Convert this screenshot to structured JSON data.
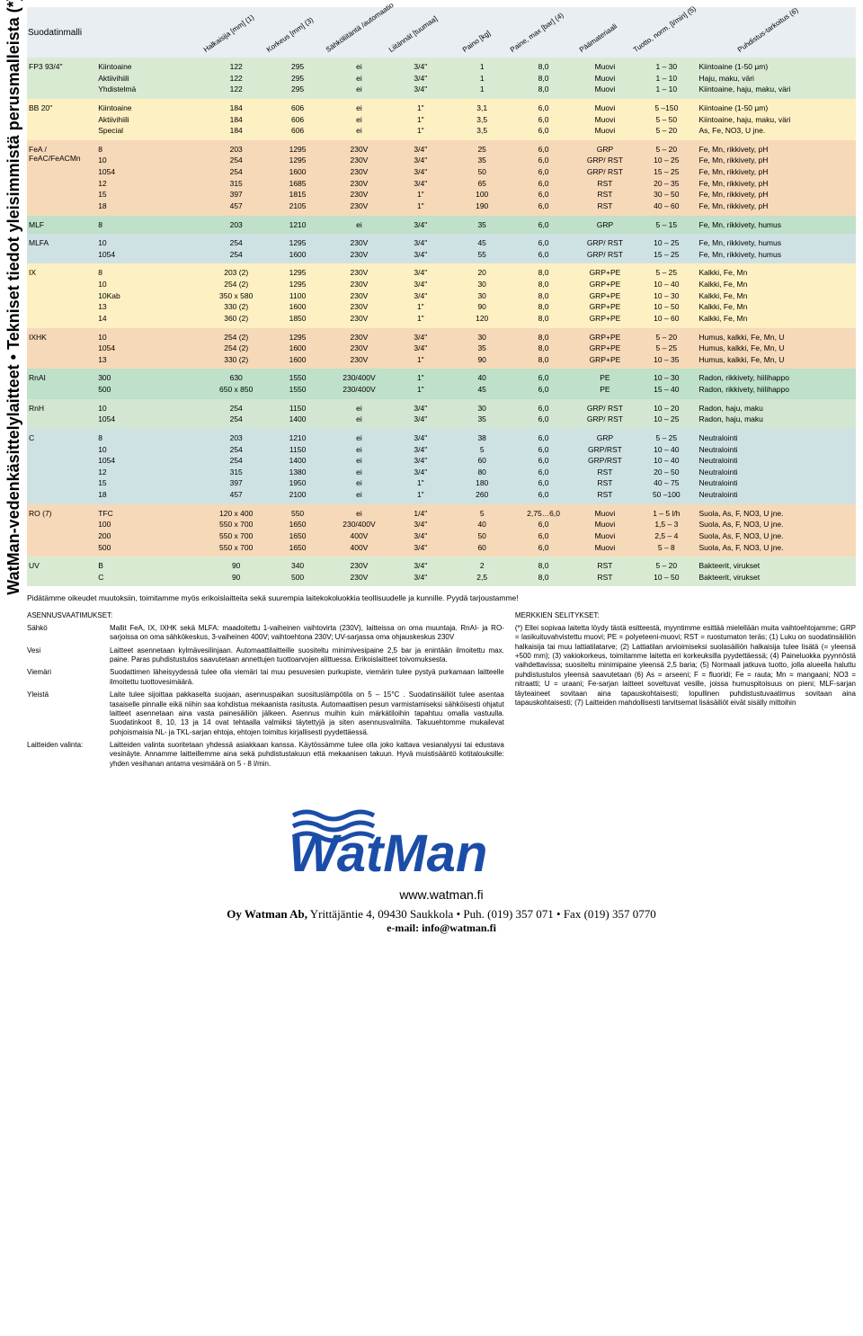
{
  "vertical_title": "WatMan-vedenkäsittelylaitteet • Tekniset tiedot yleisimmistä perusmalleista (*)",
  "headers": [
    "Suodatinmalli",
    "Halkaisija [mm] (1)",
    "Korkeus [mm] (3)",
    "Sähköliitäntä /automaatio",
    "Liitännät [tuumaa]",
    "Paino [kg]",
    "Paine, max [bar] (4)",
    "Päämateriaali",
    "Tuotto, norm. [l/min] (5)",
    "Puhdistus-tarkoitus (6)"
  ],
  "colors": {
    "green_light": "#d9ead3",
    "yellow": "#fdf0c2",
    "orange": "#f6d9b8",
    "green_row": "#bfe0c9",
    "blue_row": "#cfe2e3",
    "green_mid": "#d2e6d2",
    "header_bg": "#e9eef2"
  },
  "sections": [
    {
      "bg": "green_light",
      "model": "FP3 93/4\"",
      "subs": [
        "Kiintoaine",
        "Aktiivihiili",
        "Yhdistelmä"
      ],
      "cols": [
        [
          "122",
          "122",
          "122"
        ],
        [
          "295",
          "295",
          "295"
        ],
        [
          "ei",
          "ei",
          "ei"
        ],
        [
          "3/4\"",
          "3/4\"",
          "3/4\""
        ],
        [
          "1",
          "1",
          "1"
        ],
        [
          "8,0",
          "8,0",
          "8,0"
        ],
        [
          "Muovi",
          "Muovi",
          "Muovi"
        ],
        [
          "1 – 30",
          "1 – 10",
          "1 – 10"
        ],
        [
          "Kiintoaine (1-50 µm)",
          "Haju, maku, väri",
          "Kiintoaine, haju, maku, väri"
        ]
      ]
    },
    {
      "bg": "yellow",
      "model": "BB 20\"",
      "subs": [
        "Kiintoaine",
        "Aktiivihiili",
        "Special"
      ],
      "cols": [
        [
          "184",
          "184",
          "184"
        ],
        [
          "606",
          "606",
          "606"
        ],
        [
          "ei",
          "ei",
          "ei"
        ],
        [
          "1\"",
          "1\"",
          "1\""
        ],
        [
          "3,1",
          "3,5",
          "3,5"
        ],
        [
          "6,0",
          "6,0",
          "6,0"
        ],
        [
          "Muovi",
          "Muovi",
          "Muovi"
        ],
        [
          "5 –150",
          "5 – 50",
          "5 – 20"
        ],
        [
          "Kiintoaine (1-50 µm)",
          "Kiintoaine, haju, maku, väri",
          "As, Fe, NO3, U jne."
        ]
      ]
    },
    {
      "bg": "orange",
      "model": "FeA / FeAC/FeACMn",
      "subs": [
        "8",
        "10",
        "1054",
        "12",
        "15",
        "18"
      ],
      "cols": [
        [
          "203",
          "254",
          "254",
          "315",
          "397",
          "457"
        ],
        [
          "1295",
          "1295",
          "1600",
          "1685",
          "1815",
          "2105"
        ],
        [
          "230V",
          "230V",
          "230V",
          "230V",
          "230V",
          "230V"
        ],
        [
          "3/4\"",
          "3/4\"",
          "3/4\"",
          "3/4\"",
          "1\"",
          "1\""
        ],
        [
          "25",
          "35",
          "50",
          "65",
          "100",
          "190"
        ],
        [
          "6,0",
          "6,0",
          "6,0",
          "6,0",
          "6,0",
          "6,0"
        ],
        [
          "GRP",
          "GRP/ RST",
          "GRP/ RST",
          "RST",
          "RST",
          "RST"
        ],
        [
          "5 – 20",
          "10 – 25",
          "15 – 25",
          "20 – 35",
          "30 – 50",
          "40 – 60"
        ],
        [
          "Fe, Mn, rikkivety, pH",
          "Fe, Mn, rikkivety, pH",
          "Fe, Mn, rikkivety, pH",
          "Fe, Mn, rikkivety, pH",
          "Fe, Mn, rikkivety, pH",
          "Fe, Mn, rikkivety, pH"
        ]
      ]
    },
    {
      "bg": "green_row",
      "model": "MLF",
      "subs": [
        "8"
      ],
      "cols": [
        [
          "203"
        ],
        [
          "1210"
        ],
        [
          "ei"
        ],
        [
          "3/4\""
        ],
        [
          "35"
        ],
        [
          "6,0"
        ],
        [
          "GRP"
        ],
        [
          "5 – 15"
        ],
        [
          "Fe, Mn, rikkivety, humus"
        ]
      ]
    },
    {
      "bg": "blue_row",
      "model": "MLFA",
      "subs": [
        "10",
        "1054"
      ],
      "cols": [
        [
          "254",
          "254"
        ],
        [
          "1295",
          "1600"
        ],
        [
          "230V",
          "230V"
        ],
        [
          "3/4\"",
          "3/4\""
        ],
        [
          "45",
          "55"
        ],
        [
          "6,0",
          "6,0"
        ],
        [
          "GRP/ RST",
          "GRP/ RST"
        ],
        [
          "10 – 25",
          "15 – 25"
        ],
        [
          "Fe, Mn, rikkivety, humus",
          "Fe, Mn, rikkivety, humus"
        ]
      ]
    },
    {
      "bg": "yellow",
      "model": "IX",
      "subs": [
        "8",
        "10",
        "10Kab",
        "13",
        "14"
      ],
      "cols": [
        [
          "203 (2)",
          "254 (2)",
          "350 x 580",
          "330 (2)",
          "360 (2)"
        ],
        [
          "1295",
          "1295",
          "1100",
          "1600",
          "1850"
        ],
        [
          "230V",
          "230V",
          "230V",
          "230V",
          "230V"
        ],
        [
          "3/4\"",
          "3/4\"",
          "3/4\"",
          "1\"",
          "1\""
        ],
        [
          "20",
          "30",
          "30",
          "90",
          "120"
        ],
        [
          "8,0",
          "8,0",
          "8,0",
          "8,0",
          "8,0"
        ],
        [
          "GRP+PE",
          "GRP+PE",
          "GRP+PE",
          "GRP+PE",
          "GRP+PE"
        ],
        [
          "5 – 25",
          "10 – 40",
          "10 – 30",
          "10 – 50",
          "10 – 60"
        ],
        [
          "Kalkki, Fe, Mn",
          "Kalkki, Fe, Mn",
          "Kalkki, Fe, Mn",
          "Kalkki, Fe, Mn",
          "Kalkki, Fe, Mn"
        ]
      ]
    },
    {
      "bg": "orange",
      "model": "IXHK",
      "subs": [
        "10",
        "1054",
        "13"
      ],
      "cols": [
        [
          "254 (2)",
          "254 (2)",
          "330 (2)"
        ],
        [
          "1295",
          "1600",
          "1600"
        ],
        [
          "230V",
          "230V",
          "230V"
        ],
        [
          "3/4\"",
          "3/4\"",
          "1\""
        ],
        [
          "30",
          "35",
          "90"
        ],
        [
          "8,0",
          "8,0",
          "8,0"
        ],
        [
          "GRP+PE",
          "GRP+PE",
          "GRP+PE"
        ],
        [
          "5 – 20",
          "5 – 25",
          "10 – 35"
        ],
        [
          "Humus, kalkki, Fe, Mn, U",
          "Humus, kalkki, Fe, Mn, U",
          "Humus, kalkki, Fe, Mn, U"
        ]
      ]
    },
    {
      "bg": "green_row",
      "model": "RnAI",
      "subs": [
        "300",
        "500"
      ],
      "cols": [
        [
          "630",
          "650 x 850"
        ],
        [
          "1550",
          "1550"
        ],
        [
          "230/400V",
          "230/400V"
        ],
        [
          "1\"",
          "1\""
        ],
        [
          "40",
          "45"
        ],
        [
          "6,0",
          "6,0"
        ],
        [
          "PE",
          "PE"
        ],
        [
          "10 – 30",
          "15 – 40"
        ],
        [
          "Radon, rikkivety, hiilihappo",
          "Radon, rikkivety, hiilihappo"
        ]
      ]
    },
    {
      "bg": "green_mid",
      "model": "RnH",
      "subs": [
        "10",
        "1054"
      ],
      "cols": [
        [
          "254",
          "254"
        ],
        [
          "1150",
          "1400"
        ],
        [
          "ei",
          "ei"
        ],
        [
          "3/4\"",
          "3/4\""
        ],
        [
          "30",
          "35"
        ],
        [
          "6,0",
          "6,0"
        ],
        [
          "GRP/ RST",
          "GRP/ RST"
        ],
        [
          "10 – 20",
          "10 – 25"
        ],
        [
          "Radon, haju, maku",
          "Radon, haju, maku"
        ]
      ]
    },
    {
      "bg": "blue_row",
      "model": "C",
      "subs": [
        "8",
        "10",
        "1054",
        "12",
        "15",
        "18"
      ],
      "cols": [
        [
          "203",
          "254",
          "254",
          "315",
          "397",
          "457"
        ],
        [
          "1210",
          "1150",
          "1400",
          "1380",
          "1950",
          "2100"
        ],
        [
          "ei",
          "ei",
          "ei",
          "ei",
          "ei",
          "ei"
        ],
        [
          "3/4\"",
          "3/4\"",
          "3/4\"",
          "3/4\"",
          "1\"",
          "1\""
        ],
        [
          "38",
          "5",
          "60",
          "80",
          "180",
          "260"
        ],
        [
          "6,0",
          "6,0",
          "6,0",
          "6,0",
          "6,0",
          "6,0"
        ],
        [
          "GRP",
          "GRP/RST",
          "GRP/RST",
          "RST",
          "RST",
          "RST"
        ],
        [
          "5 – 25",
          "10 – 40",
          "10 – 40",
          "20 – 50",
          "40 – 75",
          "50 –100"
        ],
        [
          "Neutralointi",
          "Neutralointi",
          "Neutralointi",
          "Neutralointi",
          "Neutralointi",
          "Neutralointi"
        ]
      ]
    },
    {
      "bg": "orange",
      "model": "RO (7)",
      "subs": [
        "TFC",
        "100",
        "200",
        "500"
      ],
      "cols": [
        [
          "120 x 400",
          "550 x 700",
          "550 x 700",
          "550 x 700"
        ],
        [
          "550",
          "1650",
          "1650",
          "1650"
        ],
        [
          "ei",
          "230/400V",
          "400V",
          "400V"
        ],
        [
          "1/4\"",
          "3/4\"",
          "3/4\"",
          "3/4\""
        ],
        [
          "5",
          "40",
          "50",
          "60"
        ],
        [
          "2,75…6,0",
          "6,0",
          "6,0",
          "6,0"
        ],
        [
          "Muovi",
          "Muovi",
          "Muovi",
          "Muovi"
        ],
        [
          "1 – 5 l/h",
          "1,5 – 3",
          "2,5 – 4",
          "5 – 8"
        ],
        [
          "Suola, As, F, NO3, U jne.",
          "Suola, As, F, NO3, U jne.",
          "Suola, As, F, NO3, U jne.",
          "Suola, As, F, NO3, U jne."
        ]
      ]
    },
    {
      "bg": "green_light",
      "model": "UV",
      "subs": [
        "B",
        "C"
      ],
      "cols": [
        [
          "90",
          "90"
        ],
        [
          "340",
          "500"
        ],
        [
          "230V",
          "230V"
        ],
        [
          "3/4\"",
          "3/4\""
        ],
        [
          "2",
          "2,5"
        ],
        [
          "8,0",
          "8,0"
        ],
        [
          "RST",
          "RST"
        ],
        [
          "5 – 20",
          "10 – 50"
        ],
        [
          "Bakteerit, virukset",
          "Bakteerit, virukset"
        ]
      ]
    }
  ],
  "intro": "Pidätämme oikeudet muutoksiin, toimitamme myös erikoislaitteita sekä suurempia laitekokoluokkia teollisuudelle ja kunnille. Pyydä tarjoustamme!",
  "left_notes_title": "ASENNUSVAATIMUKSET:",
  "left_notes": [
    {
      "k": "Sähkö",
      "v": "Mallit FeA, IX, IXHK sekä MLFA: maadoitettu 1-vaiheinen vaihtovirta (230V), laitteissa on oma muuntaja. RnAI- ja RO-sarjoissa on oma sähkökeskus, 3-vaiheinen 400V; vaihtoehtona 230V; UV-sarjassa oma ohjauskeskus 230V"
    },
    {
      "k": "Vesi",
      "v": "Laitteet asennetaan kylmävesilinjaan. Automaattilaitteille suositeltu minimivesipaine 2,5 bar ja enintään ilmoitettu max. paine. Paras puhdistustulos saavutetaan annettujen tuottoarvojen alittuessa. Erikoislaitteet toivomuksesta."
    },
    {
      "k": "Viemäri",
      "v": "Suodattimen läheisyydessä tulee olla viemäri tai muu pesuvesien purkupiste, viemärin tulee pystyä purkamaan laitteelle ilmoitettu tuottovesimäärä."
    },
    {
      "k": "Yleistä",
      "v": "Laite tulee sijoittaa pakkaselta suojaan, asennuspaikan suosituslämpötila on 5 – 15°C . Suodatinsäiliöt tulee asentaa tasaiselle pinnalle eikä niihin saa kohdistua mekaanista rasitusta. Automaattisen pesun varmistamiseksi sähköisesti ohjatut laitteet asennetaan aina vasta painesäiliön jälkeen. Asennus muihin kuin märkätiloihin tapahtuu omalla vastuulla. Suodatinkoot 8, 10, 13 ja 14 ovat tehtaalla valmiiksi täytettyjä ja siten asennusvalmiita. Takuuehtomme mukailevat pohjoismaisia NL- ja TKL-sarjan ehtoja, ehtojen toimitus kirjallisesti pyydettäessä."
    },
    {
      "k": "Laitteiden valinta:",
      "v": "Laitteiden valinta suoritetaan yhdessä asiakkaan kanssa. Käytössämme tulee olla joko kattava vesianalyysi tai edustava vesinäyte. Annamme laitteillemme aina sekä puhdistustakuun että mekaanisen takuun. Hyvä muistisääntö kotitalouksille: yhden vesihanan antama vesimäärä on 5 - 8 l/min."
    }
  ],
  "right_notes_title": "MERKKIEN SELITYKSET:",
  "right_notes": "(*) Ellei sopivaa laitetta löydy tästä esitteestä, myyntimme esittää mielellään muita vaihtoehtojamme; GRP = lasikuituvahvistettu muovi; PE = polyeteeni-muovi; RST = ruostumaton teräs; (1) Luku on suodatinsäiliön halkaisija tai muu lattiatilatarve; (2) Lattiatilan arvioimiseksi suolasäiliön halkaisija tulee lisätä (= yleensä +500 mm); (3) vakiokorkeus, toimitamme laitetta eri korkeuksilla pyydettäessä; (4) Paineluokka pyynnöstä vaihdettavissa; suositeltu minimipaine yleensä 2,5 baria; (5) Normaali jatkuva tuotto, jolla alueella haluttu puhdistustulos yleensä saavutetaan (6) As = arseeni; F = fluoridi; Fe = rauta; Mn = mangaani; NO3 = nitraatti; U = uraani; Fe-sarjan laitteet soveltuvat vesille, joissa humuspitoisuus on pieni; MLF-sarjan täyteaineet sovitaan aina tapauskohtaisesti; lopullinen puhdistustuvaatimus sovitaan aina tapauskohtaisesti; (7) Laitteiden mahdollisesti tarvitsemat lisäsäiliöt eivät sisälly mittoihin",
  "brand": {
    "text": "WatMan",
    "url": "www.watman.fi",
    "company": "Oy Watman Ab,",
    "addr": "Yrittäjäntie 4, 09430 Saukkola • Puh. (019) 357 071 • Fax (019) 357 0770",
    "email": "e-mail: info@watman.fi",
    "logo_fill": "#1b4da8",
    "wave_fill": "#1b4da8"
  }
}
